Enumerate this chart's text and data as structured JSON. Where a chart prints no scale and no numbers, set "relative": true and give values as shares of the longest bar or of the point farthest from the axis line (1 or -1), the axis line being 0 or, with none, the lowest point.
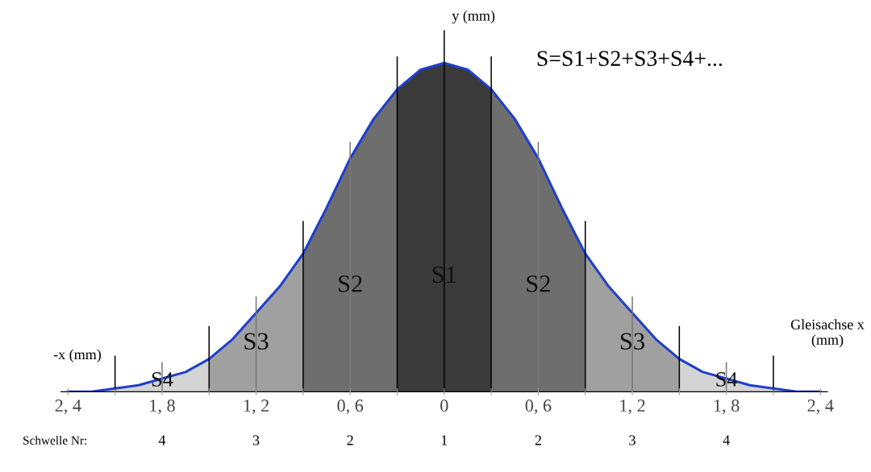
{
  "chart_data": {
    "type": "area",
    "relative": true,
    "xlabel": "Gleisachse x (mm)",
    "ylabel": "y (mm)",
    "annotations": [
      "-x (mm)",
      "S=S1+S2+S3+S4+...",
      "Schwelle Nr:",
      "4",
      "3",
      "2",
      "1",
      "2",
      "3",
      "4"
    ],
    "categories": [
      "2, 4",
      null,
      null,
      null,
      "1, 8",
      null,
      null,
      null,
      "1, 2",
      null,
      null,
      null,
      "0, 6",
      null,
      null,
      null,
      "0",
      null,
      null,
      null,
      "0, 6",
      null,
      null,
      null,
      "1, 2",
      null,
      null,
      null,
      "1, 8",
      null,
      null,
      null,
      "2, 4"
    ],
    "tick_labels": "x",
    "grid": "x",
    "series": [
      {
        "name": "S4",
        "color": "#d4d4d4",
        "values": [
          0,
          0,
          0.01,
          0.02,
          0.04,
          0.06,
          0.1,
          null,
          null,
          null,
          null,
          null,
          null,
          null,
          null,
          null,
          null,
          null,
          null,
          null,
          null,
          null,
          null,
          null,
          null,
          null,
          null,
          null,
          null,
          null,
          null,
          null,
          null
        ]
      },
      {
        "name": "S3",
        "color": "#a0a0a0",
        "values": [
          null,
          null,
          null,
          null,
          null,
          null,
          0.1,
          0.16,
          0.24,
          0.32,
          0.42,
          null,
          null,
          null,
          null,
          null,
          null,
          null,
          null,
          null,
          null,
          null,
          null,
          null,
          null,
          null,
          null,
          null,
          null,
          null,
          null,
          null,
          null
        ]
      },
      {
        "name": "S2",
        "color": "#6e6e6e",
        "values": [
          null,
          null,
          null,
          null,
          null,
          null,
          null,
          null,
          null,
          null,
          0.42,
          0.56,
          0.71,
          0.83,
          0.92,
          null,
          null,
          null,
          null,
          null,
          null,
          null,
          null,
          null,
          null,
          null,
          null,
          null,
          null,
          null,
          null,
          null,
          null
        ]
      },
      {
        "name": "S1",
        "color": "#3a3a3a",
        "values": [
          null,
          null,
          null,
          null,
          null,
          null,
          null,
          null,
          null,
          null,
          null,
          null,
          null,
          null,
          0.92,
          0.98,
          1,
          0.98,
          0.92,
          null,
          null,
          null,
          null,
          null,
          null,
          null,
          null,
          null,
          null,
          null,
          null,
          null,
          null
        ]
      },
      {
        "name": "S2",
        "color": "#6e6e6e",
        "values": [
          null,
          null,
          null,
          null,
          null,
          null,
          null,
          null,
          null,
          null,
          null,
          null,
          null,
          null,
          null,
          null,
          null,
          null,
          0.92,
          0.83,
          0.71,
          0.56,
          0.42,
          null,
          null,
          null,
          null,
          null,
          null,
          null,
          null,
          null,
          null
        ]
      },
      {
        "name": "S3",
        "color": "#a0a0a0",
        "values": [
          null,
          null,
          null,
          null,
          null,
          null,
          null,
          null,
          null,
          null,
          null,
          null,
          null,
          null,
          null,
          null,
          null,
          null,
          null,
          null,
          null,
          null,
          0.42,
          0.32,
          0.24,
          0.16,
          0.1,
          null,
          null,
          null,
          null,
          null,
          null
        ]
      },
      {
        "name": "S4",
        "color": "#d4d4d4",
        "values": [
          null,
          null,
          null,
          null,
          null,
          null,
          null,
          null,
          null,
          null,
          null,
          null,
          null,
          null,
          null,
          null,
          null,
          null,
          null,
          null,
          null,
          null,
          null,
          null,
          null,
          null,
          0.1,
          0.06,
          0.04,
          0.02,
          0.01,
          0,
          0
        ]
      },
      {
        "type": "line",
        "color": "#1f3fcc",
        "values": [
          0,
          0,
          0.01,
          0.02,
          0.04,
          0.06,
          0.1,
          0.16,
          0.24,
          0.32,
          0.42,
          0.56,
          0.71,
          0.83,
          0.92,
          0.98,
          1,
          0.98,
          0.92,
          0.83,
          0.71,
          0.56,
          0.42,
          0.32,
          0.24,
          0.16,
          0.1,
          0.06,
          0.04,
          0.02,
          0.01,
          0,
          0
        ]
      }
    ]
  }
}
